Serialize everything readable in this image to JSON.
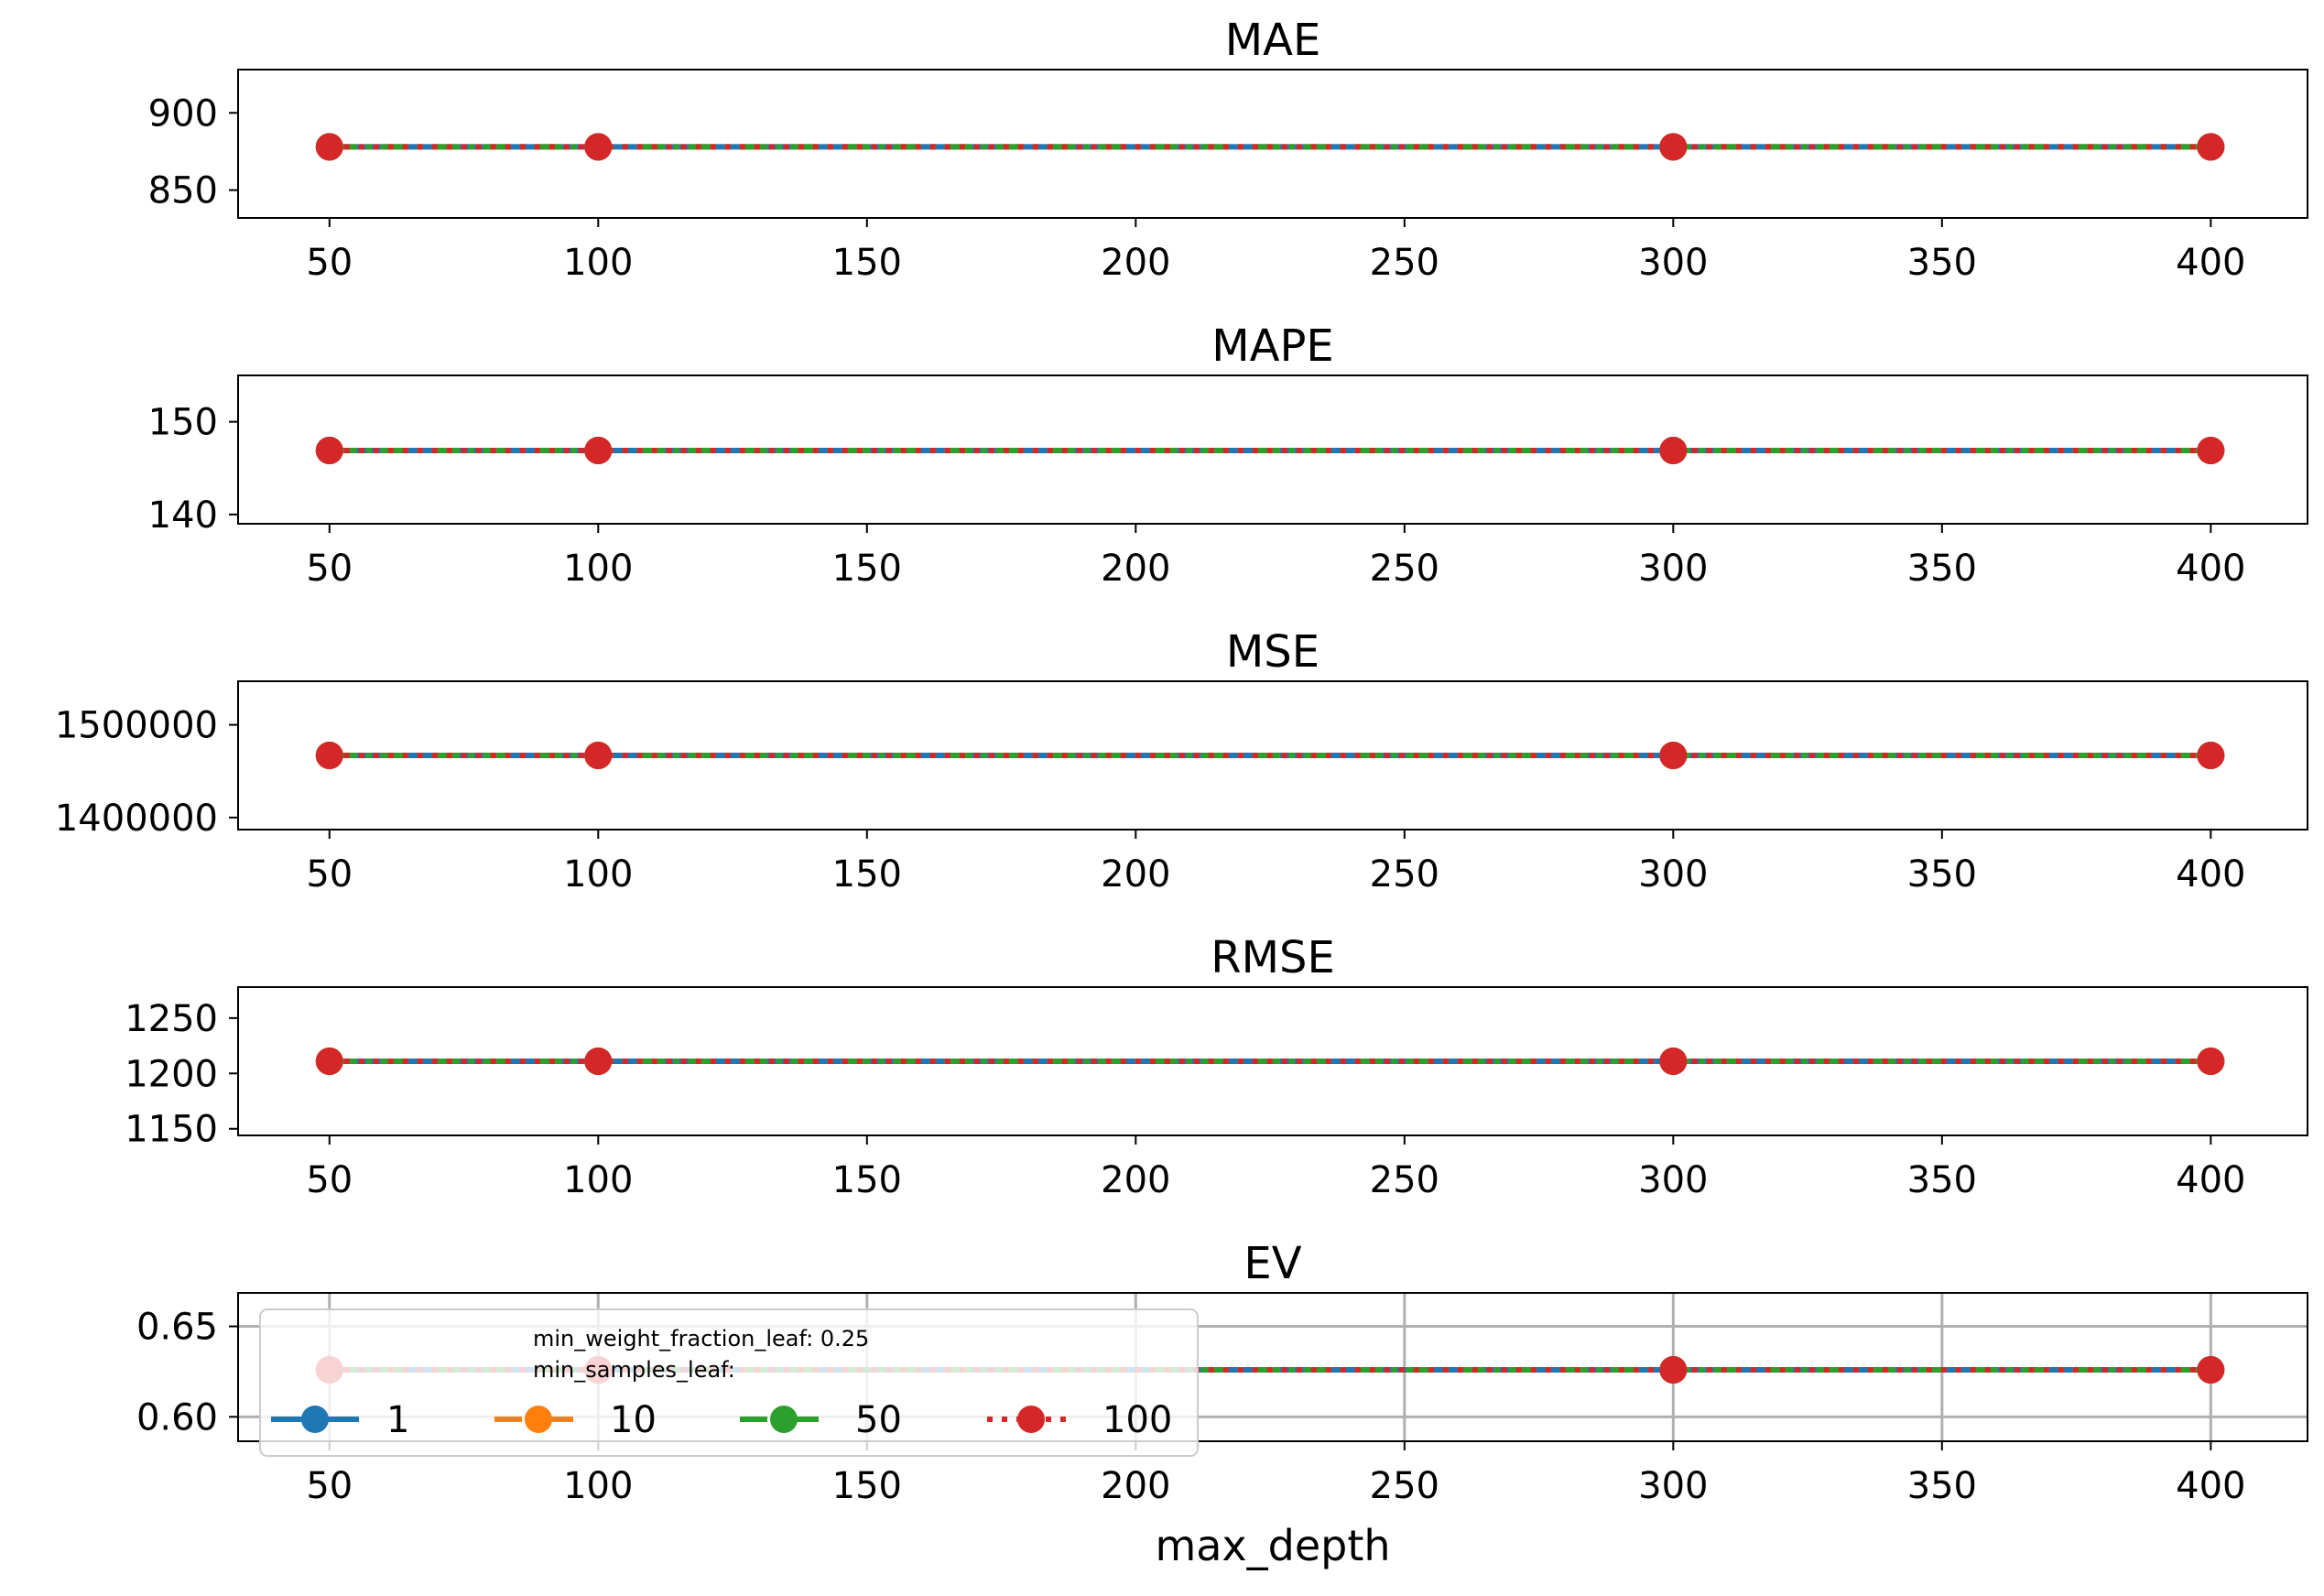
{
  "chart_data": {
    "type": "line",
    "xlabel": "max_depth",
    "x": [
      50,
      100,
      300,
      400
    ],
    "xticks": [
      50,
      100,
      150,
      200,
      250,
      300,
      350,
      400
    ],
    "xlim": [
      33,
      418
    ],
    "legend": {
      "placement": "lower-left",
      "title_lines": [
        "min_weight_fraction_leaf: 0.25",
        "min_samples_leaf:"
      ],
      "entries": [
        "1",
        "10",
        "50",
        "100"
      ]
    },
    "series_styles": [
      {
        "name": "1",
        "color": "#1f77b4",
        "dash": "solid"
      },
      {
        "name": "10",
        "color": "#ff7f0e",
        "dash": "dashdot"
      },
      {
        "name": "50",
        "color": "#2ca02c",
        "dash": "dashdot"
      },
      {
        "name": "100",
        "color": "#d62728",
        "dash": "dotted"
      }
    ],
    "panels": [
      {
        "title": "MAE",
        "ylim": [
          832,
          928
        ],
        "yticks": [
          {
            "value": 850,
            "label": "850"
          },
          {
            "value": 900,
            "label": "900"
          }
        ],
        "grid": false,
        "series": [
          {
            "name": "1",
            "values": [
              878,
              878,
              878,
              878
            ]
          },
          {
            "name": "10",
            "values": [
              878,
              878,
              878,
              878
            ]
          },
          {
            "name": "50",
            "values": [
              878,
              878,
              878,
              878
            ]
          },
          {
            "name": "100",
            "values": [
              878,
              878,
              878,
              878
            ]
          }
        ]
      },
      {
        "title": "MAPE",
        "ylim": [
          139,
          155
        ],
        "yticks": [
          {
            "value": 140,
            "label": "140"
          },
          {
            "value": 150,
            "label": "150"
          }
        ],
        "grid": false,
        "series": [
          {
            "name": "1",
            "values": [
              146.9,
              146.9,
              146.9,
              146.9
            ]
          },
          {
            "name": "10",
            "values": [
              146.9,
              146.9,
              146.9,
              146.9
            ]
          },
          {
            "name": "50",
            "values": [
              146.9,
              146.9,
              146.9,
              146.9
            ]
          },
          {
            "name": "100",
            "values": [
              146.9,
              146.9,
              146.9,
              146.9
            ]
          }
        ]
      },
      {
        "title": "MSE",
        "ylim": [
          1387000,
          1547000
        ],
        "yticks": [
          {
            "value": 1400000,
            "label": "1400000"
          },
          {
            "value": 1500000,
            "label": "1500000"
          }
        ],
        "grid": false,
        "series": [
          {
            "name": "1",
            "values": [
              1467000,
              1467000,
              1467000,
              1467000
            ]
          },
          {
            "name": "10",
            "values": [
              1467000,
              1467000,
              1467000,
              1467000
            ]
          },
          {
            "name": "50",
            "values": [
              1467000,
              1467000,
              1467000,
              1467000
            ]
          },
          {
            "name": "100",
            "values": [
              1467000,
              1467000,
              1467000,
              1467000
            ]
          }
        ]
      },
      {
        "title": "RMSE",
        "ylim": [
          1144,
          1278
        ],
        "yticks": [
          {
            "value": 1150,
            "label": "1150"
          },
          {
            "value": 1200,
            "label": "1200"
          },
          {
            "value": 1250,
            "label": "1250"
          }
        ],
        "grid": false,
        "series": [
          {
            "name": "1",
            "values": [
              1211,
              1211,
              1211,
              1211
            ]
          },
          {
            "name": "10",
            "values": [
              1211,
              1211,
              1211,
              1211
            ]
          },
          {
            "name": "50",
            "values": [
              1211,
              1211,
              1211,
              1211
            ]
          },
          {
            "name": "100",
            "values": [
              1211,
              1211,
              1211,
              1211
            ]
          }
        ]
      },
      {
        "title": "EV",
        "ylim": [
          0.5865,
          0.6685
        ],
        "yticks": [
          {
            "value": 0.6,
            "label": "0.60"
          },
          {
            "value": 0.65,
            "label": "0.65"
          }
        ],
        "grid": true,
        "series": [
          {
            "name": "1",
            "values": [
              0.626,
              0.626,
              0.626,
              0.626
            ]
          },
          {
            "name": "10",
            "values": [
              0.626,
              0.626,
              0.626,
              0.626
            ]
          },
          {
            "name": "50",
            "values": [
              0.626,
              0.626,
              0.626,
              0.626
            ]
          },
          {
            "name": "100",
            "values": [
              0.626,
              0.626,
              0.626,
              0.626
            ]
          }
        ]
      }
    ]
  }
}
